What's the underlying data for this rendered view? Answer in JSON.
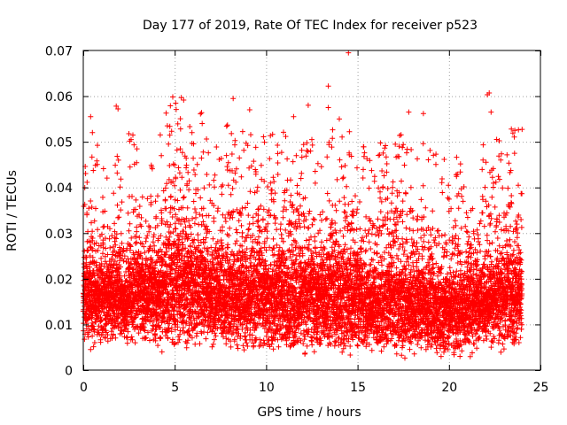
{
  "chart_data": {
    "type": "scatter",
    "title": "Day 177 of 2019, Rate Of TEC Index for receiver p523",
    "xlabel": "GPS time / hours",
    "ylabel": "ROTI / TECUs",
    "xlim": [
      0,
      25
    ],
    "ylim": [
      0,
      0.07
    ],
    "xticks": [
      0,
      5,
      10,
      15,
      20,
      25
    ],
    "yticks": [
      0,
      0.01,
      0.02,
      0.03,
      0.04,
      0.05,
      0.06,
      0.07
    ],
    "xtick_labels": [
      "0",
      "5",
      "10",
      "15",
      "20",
      "25"
    ],
    "ytick_labels": [
      "0",
      "0.01",
      "0.02",
      "0.03",
      "0.04",
      "0.05",
      "0.06",
      "0.07"
    ],
    "grid": true,
    "marker": "+",
    "series_color": "#ff0000",
    "x_data_range": [
      0,
      24
    ],
    "density_envelope": {
      "x": [
        0,
        0.5,
        1,
        1.5,
        2,
        2.3,
        2.5,
        3,
        3.5,
        4,
        4.5,
        5,
        5.5,
        6,
        6.5,
        6.8,
        7,
        8,
        9,
        10,
        11,
        12,
        13,
        14,
        15,
        16,
        17,
        18,
        19,
        20,
        21,
        22,
        23,
        24
      ],
      "low": [
        0.006,
        0.006,
        0.006,
        0.006,
        0.007,
        0.005,
        0.006,
        0.005,
        0.005,
        0.005,
        0.006,
        0.005,
        0.005,
        0.005,
        0.005,
        0.006,
        0.006,
        0.005,
        0.005,
        0.004,
        0.005,
        0.005,
        0.005,
        0.005,
        0.005,
        0.005,
        0.005,
        0.005,
        0.005,
        0.004,
        0.005,
        0.006,
        0.006,
        0.006
      ],
      "high": [
        0.03,
        0.034,
        0.033,
        0.032,
        0.034,
        0.026,
        0.038,
        0.035,
        0.03,
        0.033,
        0.04,
        0.045,
        0.044,
        0.04,
        0.042,
        0.034,
        0.036,
        0.038,
        0.036,
        0.035,
        0.037,
        0.036,
        0.035,
        0.038,
        0.035,
        0.033,
        0.036,
        0.035,
        0.033,
        0.03,
        0.033,
        0.034,
        0.036,
        0.038
      ],
      "median": [
        0.016,
        0.017,
        0.017,
        0.016,
        0.017,
        0.013,
        0.018,
        0.017,
        0.016,
        0.017,
        0.018,
        0.019,
        0.018,
        0.018,
        0.018,
        0.016,
        0.016,
        0.016,
        0.016,
        0.016,
        0.016,
        0.016,
        0.016,
        0.016,
        0.016,
        0.015,
        0.015,
        0.014,
        0.014,
        0.013,
        0.014,
        0.015,
        0.016,
        0.017
      ]
    },
    "notable_points": [
      {
        "x": 14.5,
        "y": 0.0695
      },
      {
        "x": 13.4,
        "y": 0.0622
      },
      {
        "x": 22.2,
        "y": 0.0607
      },
      {
        "x": 22.1,
        "y": 0.0603
      },
      {
        "x": 8.2,
        "y": 0.0595
      },
      {
        "x": 1.8,
        "y": 0.0578
      },
      {
        "x": 1.9,
        "y": 0.0572
      },
      {
        "x": 12.3,
        "y": 0.058
      },
      {
        "x": 13.4,
        "y": 0.0575
      },
      {
        "x": 9.1,
        "y": 0.057
      },
      {
        "x": 22.3,
        "y": 0.0565
      },
      {
        "x": 18.6,
        "y": 0.0562
      },
      {
        "x": 17.8,
        "y": 0.0565
      },
      {
        "x": 0.4,
        "y": 0.0555
      },
      {
        "x": 6.5,
        "y": 0.054
      },
      {
        "x": 11.5,
        "y": 0.0555
      },
      {
        "x": 14.0,
        "y": 0.055
      },
      {
        "x": 4.6,
        "y": 0.0535
      },
      {
        "x": 23.6,
        "y": 0.0525
      },
      {
        "x": 0.5,
        "y": 0.052
      },
      {
        "x": 12.5,
        "y": 0.0505
      },
      {
        "x": 20.6,
        "y": 0.003
      },
      {
        "x": 0.4,
        "y": 0.0045
      },
      {
        "x": 4.3,
        "y": 0.004
      }
    ]
  }
}
